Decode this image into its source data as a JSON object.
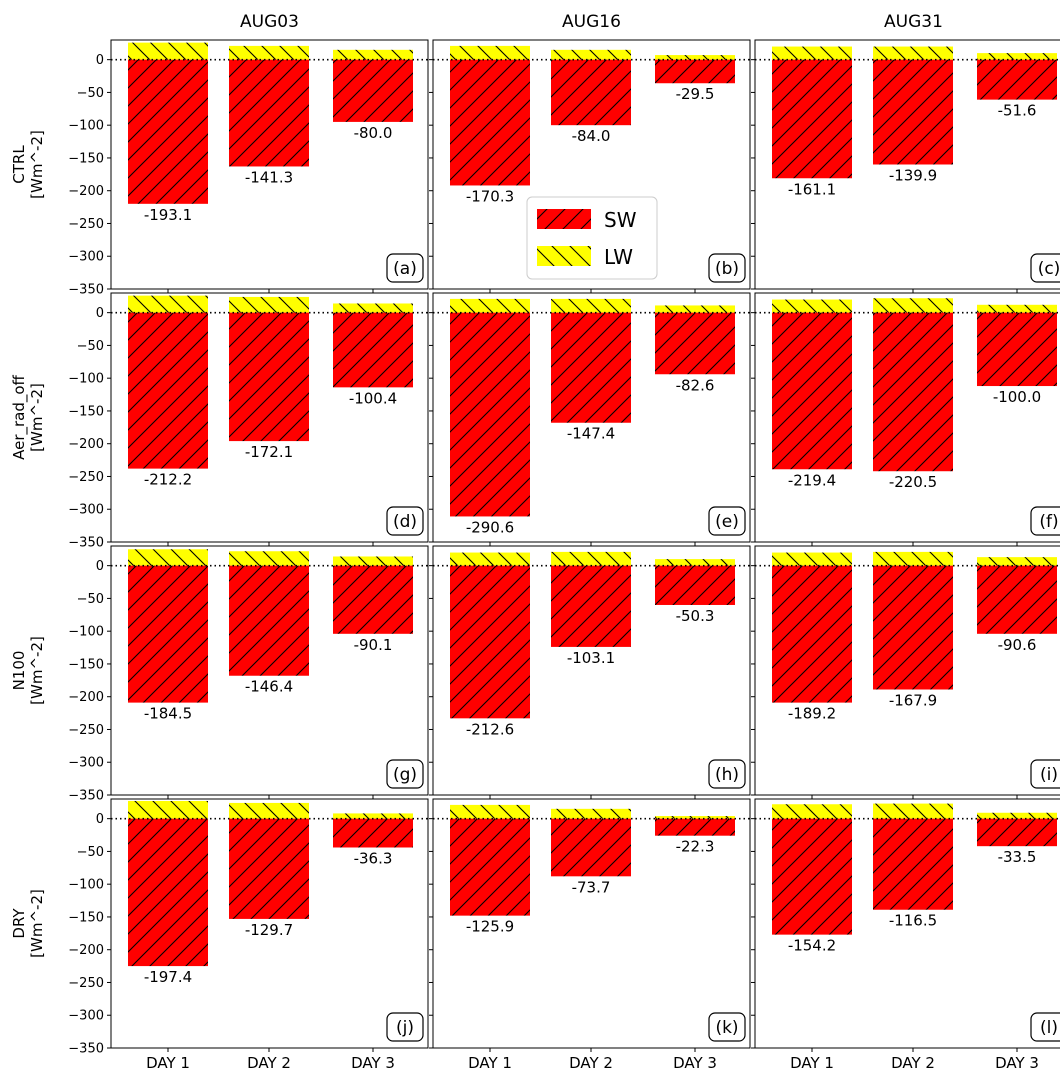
{
  "chart_data": {
    "type": "bar",
    "layout": "small-multiples",
    "columns": [
      "AUG03",
      "AUG16",
      "AUG31"
    ],
    "row_labels": [
      "CTRL",
      "Aer_rad_off",
      "N100",
      "DRY"
    ],
    "unit_label": "[Wm^-2]",
    "categories": [
      "DAY 1",
      "DAY 2",
      "DAY 3"
    ],
    "ylim": [
      -350,
      30
    ],
    "yticks": [
      0,
      -50,
      -100,
      -150,
      -200,
      -250,
      -300,
      -350
    ],
    "zero_line": "dotted",
    "legend": {
      "position": "panel (b) center",
      "entries": [
        "SW",
        "LW"
      ]
    },
    "colors": {
      "SW": "#ff0000",
      "LW": "#ffff00"
    },
    "panels": [
      {
        "tag": "(a)",
        "row": 0,
        "col": 0,
        "SW": [
          -220,
          -163,
          -95
        ],
        "LW": [
          26,
          21,
          15
        ],
        "labels": [
          "-193.1",
          "-141.3",
          "-80.0"
        ]
      },
      {
        "tag": "(b)",
        "row": 0,
        "col": 1,
        "SW": [
          -192,
          -100,
          -36
        ],
        "LW": [
          21,
          15,
          7
        ],
        "labels": [
          "-170.3",
          "-84.0",
          "-29.5"
        ]
      },
      {
        "tag": "(c)",
        "row": 0,
        "col": 2,
        "SW": [
          -181,
          -160,
          -61
        ],
        "LW": [
          20,
          20,
          10
        ],
        "labels": [
          "-161.1",
          "-139.9",
          "-51.6"
        ]
      },
      {
        "tag": "(d)",
        "row": 1,
        "col": 0,
        "SW": [
          -238,
          -196,
          -114
        ],
        "LW": [
          26,
          24,
          14
        ],
        "labels": [
          "-212.2",
          "-172.1",
          "-100.4"
        ]
      },
      {
        "tag": "(e)",
        "row": 1,
        "col": 1,
        "SW": [
          -311,
          -168,
          -94
        ],
        "LW": [
          21,
          21,
          11
        ],
        "labels": [
          "-290.6",
          "-147.4",
          "-82.6"
        ]
      },
      {
        "tag": "(f)",
        "row": 1,
        "col": 2,
        "SW": [
          -239,
          -242,
          -112
        ],
        "LW": [
          20,
          22,
          12
        ],
        "labels": [
          "-219.4",
          "-220.5",
          "-100.0"
        ]
      },
      {
        "tag": "(g)",
        "row": 2,
        "col": 0,
        "SW": [
          -209,
          -168,
          -104
        ],
        "LW": [
          25,
          22,
          14
        ],
        "labels": [
          "-184.5",
          "-146.4",
          "-90.1"
        ]
      },
      {
        "tag": "(h)",
        "row": 2,
        "col": 1,
        "SW": [
          -233,
          -124,
          -60
        ],
        "LW": [
          20,
          21,
          10
        ],
        "labels": [
          "-212.6",
          "-103.1",
          "-50.3"
        ]
      },
      {
        "tag": "(i)",
        "row": 2,
        "col": 2,
        "SW": [
          -209,
          -189,
          -104
        ],
        "LW": [
          20,
          21,
          13
        ],
        "labels": [
          "-189.2",
          "-167.9",
          "-90.6"
        ]
      },
      {
        "tag": "(j)",
        "row": 3,
        "col": 0,
        "SW": [
          -225,
          -153,
          -44
        ],
        "LW": [
          27,
          24,
          8
        ],
        "labels": [
          "-197.4",
          "-129.7",
          "-36.3"
        ]
      },
      {
        "tag": "(k)",
        "row": 3,
        "col": 1,
        "SW": [
          -148,
          -88,
          -26
        ],
        "LW": [
          21,
          15,
          4
        ],
        "labels": [
          "-125.9",
          "-73.7",
          "-22.3"
        ]
      },
      {
        "tag": "(l)",
        "row": 3,
        "col": 2,
        "SW": [
          -177,
          -139,
          -42
        ],
        "LW": [
          22,
          23,
          9
        ],
        "labels": [
          "-154.2",
          "-116.5",
          "-33.5"
        ]
      }
    ]
  }
}
